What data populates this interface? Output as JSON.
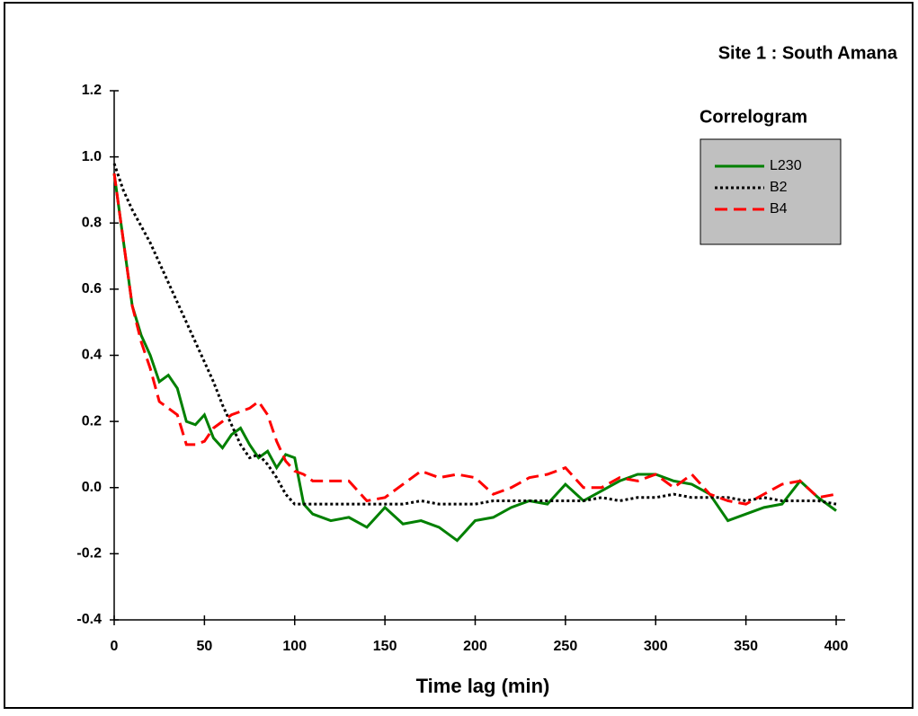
{
  "chart_data": {
    "type": "line",
    "title": "Site 1 : South Amana",
    "legend_title": "Correlogram",
    "x_label": "Time lag (min)",
    "xlim": [
      0,
      400
    ],
    "xticks": [
      0,
      50,
      100,
      150,
      200,
      250,
      300,
      350,
      400
    ],
    "ylim": [
      -0.4,
      1.2
    ],
    "yticks": [
      -0.4,
      -0.2,
      {
        "value": 0,
        "label": "0.0"
      },
      0.2,
      0.4,
      0.6,
      0.8,
      {
        "value": 1,
        "label": "1.0"
      },
      1.2
    ],
    "grid": false,
    "legend": "top-right",
    "x": [
      0,
      5,
      10,
      15,
      20,
      25,
      30,
      35,
      40,
      45,
      50,
      55,
      60,
      65,
      70,
      75,
      80,
      85,
      90,
      95,
      100,
      105,
      110,
      120,
      130,
      140,
      150,
      160,
      170,
      180,
      190,
      200,
      210,
      220,
      230,
      240,
      250,
      260,
      270,
      280,
      290,
      300,
      310,
      320,
      330,
      340,
      350,
      360,
      370,
      380,
      390,
      400
    ],
    "series": [
      {
        "name": "L230",
        "color": "#008000",
        "dash": "solid",
        "values": [
          0.95,
          0.75,
          0.55,
          0.46,
          0.4,
          0.32,
          0.34,
          0.3,
          0.2,
          0.19,
          0.22,
          0.15,
          0.12,
          0.16,
          0.18,
          0.13,
          0.09,
          0.11,
          0.06,
          0.1,
          0.09,
          -0.05,
          -0.08,
          -0.1,
          -0.09,
          -0.12,
          -0.06,
          -0.11,
          -0.1,
          -0.12,
          -0.16,
          -0.1,
          -0.09,
          -0.06,
          -0.04,
          -0.05,
          0.01,
          -0.04,
          -0.01,
          0.02,
          0.04,
          0.04,
          0.02,
          0.01,
          -0.02,
          -0.1,
          -0.08,
          -0.06,
          -0.05,
          0.02,
          -0.03,
          -0.07
        ]
      },
      {
        "name": "B2",
        "color": "#000000",
        "dash": "dotted",
        "values": [
          0.98,
          0.9,
          0.84,
          0.79,
          0.74,
          0.68,
          0.62,
          0.56,
          0.5,
          0.44,
          0.38,
          0.32,
          0.25,
          0.19,
          0.13,
          0.09,
          0.1,
          0.07,
          0.03,
          -0.02,
          -0.05,
          -0.05,
          -0.05,
          -0.05,
          -0.05,
          -0.05,
          -0.05,
          -0.05,
          -0.04,
          -0.05,
          -0.05,
          -0.05,
          -0.04,
          -0.04,
          -0.04,
          -0.04,
          -0.04,
          -0.04,
          -0.03,
          -0.04,
          -0.03,
          -0.03,
          -0.02,
          -0.03,
          -0.03,
          -0.03,
          -0.04,
          -0.03,
          -0.04,
          -0.04,
          -0.04,
          -0.05
        ]
      },
      {
        "name": "B4",
        "color": "#ff0000",
        "dash": "dashed",
        "values": [
          0.95,
          0.75,
          0.55,
          0.44,
          0.36,
          0.26,
          0.24,
          0.22,
          0.13,
          0.13,
          0.14,
          0.18,
          0.2,
          0.22,
          0.23,
          0.24,
          0.26,
          0.22,
          0.14,
          0.08,
          0.05,
          0.04,
          0.02,
          0.02,
          0.02,
          -0.04,
          -0.03,
          0.01,
          0.05,
          0.03,
          0.04,
          0.03,
          -0.02,
          0.0,
          0.03,
          0.04,
          0.06,
          0.0,
          0.0,
          0.03,
          0.02,
          0.04,
          0.0,
          0.04,
          -0.02,
          -0.04,
          -0.05,
          -0.02,
          0.01,
          0.02,
          -0.03,
          -0.02
        ]
      }
    ]
  }
}
